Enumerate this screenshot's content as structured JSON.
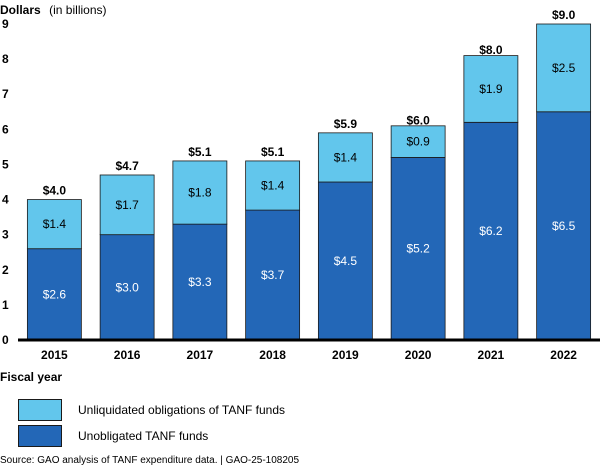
{
  "chart_data": {
    "type": "bar",
    "stacked": true,
    "ylabel": "Dollars",
    "ylabel_sub": "(in billions)",
    "xlabel": "Fiscal year",
    "ylim": [
      0,
      9
    ],
    "yticks": [
      "0",
      "1",
      "2",
      "3",
      "4",
      "5",
      "6",
      "7",
      "8",
      "9"
    ],
    "categories": [
      "2015",
      "2016",
      "2017",
      "2018",
      "2019",
      "2020",
      "2021",
      "2022"
    ],
    "series": [
      {
        "name": "Unobligated TANF funds",
        "color": "#2367b7",
        "values": [
          2.6,
          3.0,
          3.3,
          3.7,
          4.5,
          5.2,
          6.2,
          6.5
        ],
        "labels": [
          "$2.6",
          "$3.0",
          "$3.3",
          "$3.7",
          "$4.5",
          "$5.2",
          "$6.2",
          "$6.5"
        ]
      },
      {
        "name": "Unliquidated obligations of TANF funds",
        "color": "#62c6ec",
        "values": [
          1.4,
          1.7,
          1.8,
          1.4,
          1.4,
          0.9,
          1.9,
          2.5
        ],
        "labels": [
          "$1.4",
          "$1.7",
          "$1.8",
          "$1.4",
          "$1.4",
          "$0.9",
          "$1.9",
          "$2.5"
        ]
      }
    ],
    "totals": [
      4.0,
      4.7,
      5.1,
      5.1,
      5.9,
      6.0,
      8.0,
      9.0
    ],
    "total_labels": [
      "$4.0",
      "$4.7",
      "$5.1",
      "$5.1",
      "$5.9",
      "$6.0",
      "$8.0",
      "$9.0"
    ],
    "legend_placement": "bottom-left",
    "grid": false
  },
  "legend": {
    "items": [
      {
        "label": "Unliquidated obligations of TANF funds",
        "color": "#62c6ec"
      },
      {
        "label": "Unobligated TANF funds",
        "color": "#2367b7"
      }
    ]
  },
  "source": "Source: GAO analysis of TANF expenditure data.  |  GAO-25-108205"
}
